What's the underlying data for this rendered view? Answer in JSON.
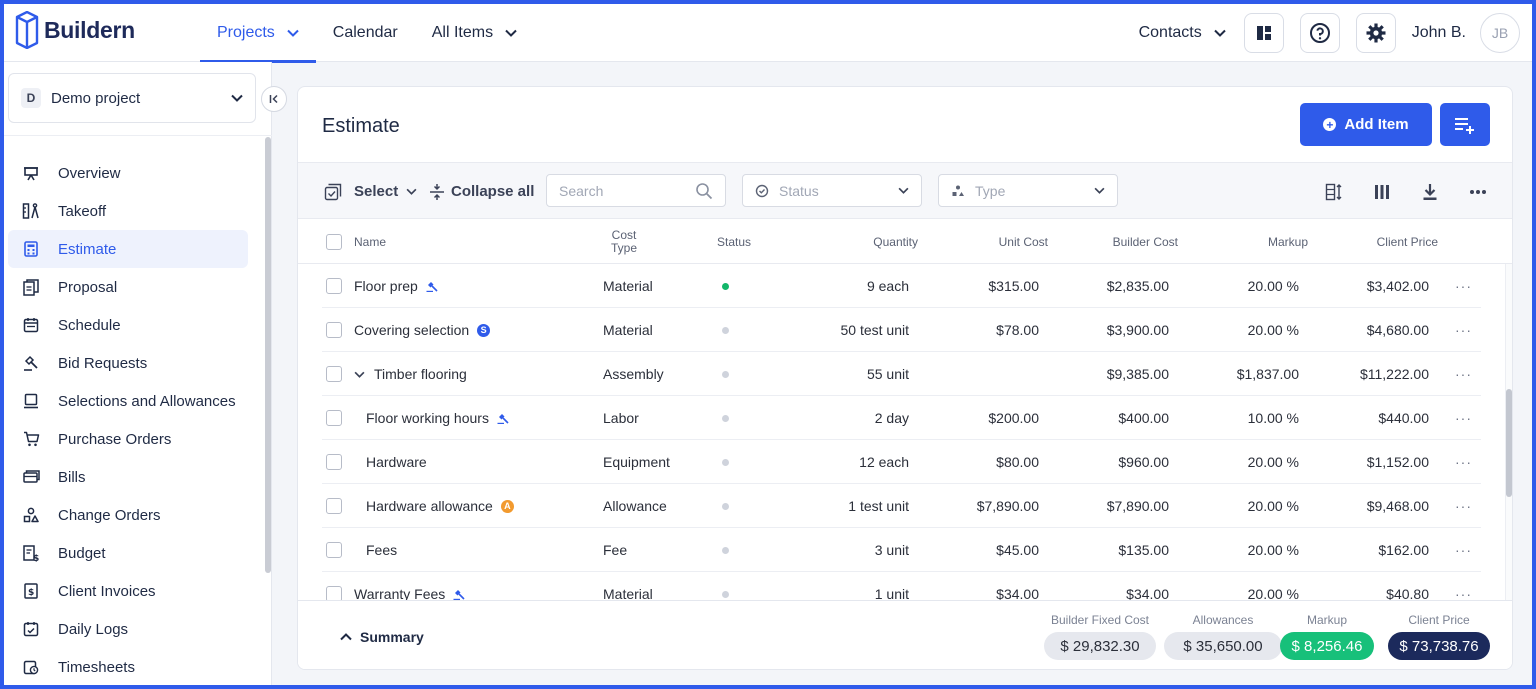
{
  "app": {
    "logo_text": "Buildern",
    "nav": [
      {
        "label": "Projects",
        "active": true,
        "dropdown": true
      },
      {
        "label": "Calendar",
        "active": false,
        "dropdown": false
      },
      {
        "label": "All Items",
        "active": false,
        "dropdown": true
      }
    ],
    "contacts_label": "Contacts",
    "user_name": "John B.",
    "user_initials": "JB",
    "accent_color": "#2f5bea"
  },
  "sidebar": {
    "project_badge": "D",
    "project_name": "Demo project",
    "items": [
      {
        "label": "Overview",
        "icon": "presentation-icon",
        "active": false
      },
      {
        "label": "Takeoff",
        "icon": "takeoff-icon",
        "active": false
      },
      {
        "label": "Estimate",
        "icon": "calculator-icon",
        "active": true
      },
      {
        "label": "Proposal",
        "icon": "proposal-icon",
        "active": false
      },
      {
        "label": "Schedule",
        "icon": "calendar-icon",
        "active": false
      },
      {
        "label": "Bid Requests",
        "icon": "gavel-icon",
        "active": false
      },
      {
        "label": "Selections and Allowances",
        "icon": "selections-icon",
        "active": false
      },
      {
        "label": "Purchase Orders",
        "icon": "cart-icon",
        "active": false
      },
      {
        "label": "Bills",
        "icon": "bills-icon",
        "active": false
      },
      {
        "label": "Change Orders",
        "icon": "change-orders-icon",
        "active": false
      },
      {
        "label": "Budget",
        "icon": "budget-icon",
        "active": false
      },
      {
        "label": "Client Invoices",
        "icon": "invoice-icon",
        "active": false
      },
      {
        "label": "Daily Logs",
        "icon": "daily-log-icon",
        "active": false
      },
      {
        "label": "Timesheets",
        "icon": "timesheet-icon",
        "active": false
      }
    ]
  },
  "estimate": {
    "title": "Estimate",
    "add_item_label": "Add Item",
    "toolbar": {
      "select_label": "Select",
      "collapse_label": "Collapse all",
      "search_placeholder": "Search",
      "status_placeholder": "Status",
      "type_placeholder": "Type"
    },
    "columns": {
      "name": "Name",
      "cost_type_line1": "Cost",
      "cost_type_line2": "Type",
      "status": "Status",
      "quantity": "Quantity",
      "unit_cost": "Unit Cost",
      "builder_cost": "Builder Cost",
      "markup": "Markup",
      "client_price": "Client Price"
    },
    "rows": [
      {
        "name": "Floor prep",
        "badge": "bid",
        "indent": 0,
        "expand": false,
        "cost_type": "Material",
        "status": "green",
        "quantity": "9 each",
        "unit_cost": "$315.00",
        "builder_cost": "$2,835.00",
        "markup": "20.00 %",
        "client_price": "$3,402.00"
      },
      {
        "name": "Covering selection",
        "badge": "S",
        "indent": 0,
        "expand": false,
        "cost_type": "Material",
        "status": "gray",
        "quantity": "50 test unit",
        "unit_cost": "$78.00",
        "builder_cost": "$3,900.00",
        "markup": "20.00 %",
        "client_price": "$4,680.00"
      },
      {
        "name": "Timber flooring",
        "badge": "",
        "indent": 0,
        "expand": true,
        "cost_type": "Assembly",
        "status": "gray",
        "quantity": "55 unit",
        "unit_cost": "",
        "builder_cost": "$9,385.00",
        "markup": "$1,837.00",
        "client_price": "$11,222.00"
      },
      {
        "name": "Floor working hours",
        "badge": "bid",
        "indent": 1,
        "expand": false,
        "cost_type": "Labor",
        "status": "gray",
        "quantity": "2 day",
        "unit_cost": "$200.00",
        "builder_cost": "$400.00",
        "markup": "10.00 %",
        "client_price": "$440.00"
      },
      {
        "name": "Hardware",
        "badge": "",
        "indent": 1,
        "expand": false,
        "cost_type": "Equipment",
        "status": "gray",
        "quantity": "12 each",
        "unit_cost": "$80.00",
        "builder_cost": "$960.00",
        "markup": "20.00 %",
        "client_price": "$1,152.00"
      },
      {
        "name": "Hardware allowance",
        "badge": "A",
        "indent": 1,
        "expand": false,
        "cost_type": "Allowance",
        "status": "gray",
        "quantity": "1 test unit",
        "unit_cost": "$7,890.00",
        "builder_cost": "$7,890.00",
        "markup": "20.00 %",
        "client_price": "$9,468.00"
      },
      {
        "name": "Fees",
        "badge": "",
        "indent": 1,
        "expand": false,
        "cost_type": "Fee",
        "status": "gray",
        "quantity": "3 unit",
        "unit_cost": "$45.00",
        "builder_cost": "$135.00",
        "markup": "20.00 %",
        "client_price": "$162.00"
      },
      {
        "name": "Warranty Fees",
        "badge": "bid",
        "indent": 0,
        "expand": false,
        "cost_type": "Material",
        "status": "gray",
        "quantity": "1 unit",
        "unit_cost": "$34.00",
        "builder_cost": "$34.00",
        "markup": "20.00 %",
        "client_price": "$40.80"
      }
    ],
    "summary": {
      "toggle_label": "Summary",
      "builder_fixed_cost_label": "Builder Fixed Cost",
      "builder_fixed_cost": "$ 29,832.30",
      "allowances_label": "Allowances",
      "allowances": "$ 35,650.00",
      "markup_label": "Markup",
      "markup": "$ 8,256.46",
      "client_price_label": "Client Price",
      "client_price": "$ 73,738.76"
    },
    "status_colors": {
      "green": "#12b76a",
      "gray": "#cfd3dc"
    }
  }
}
